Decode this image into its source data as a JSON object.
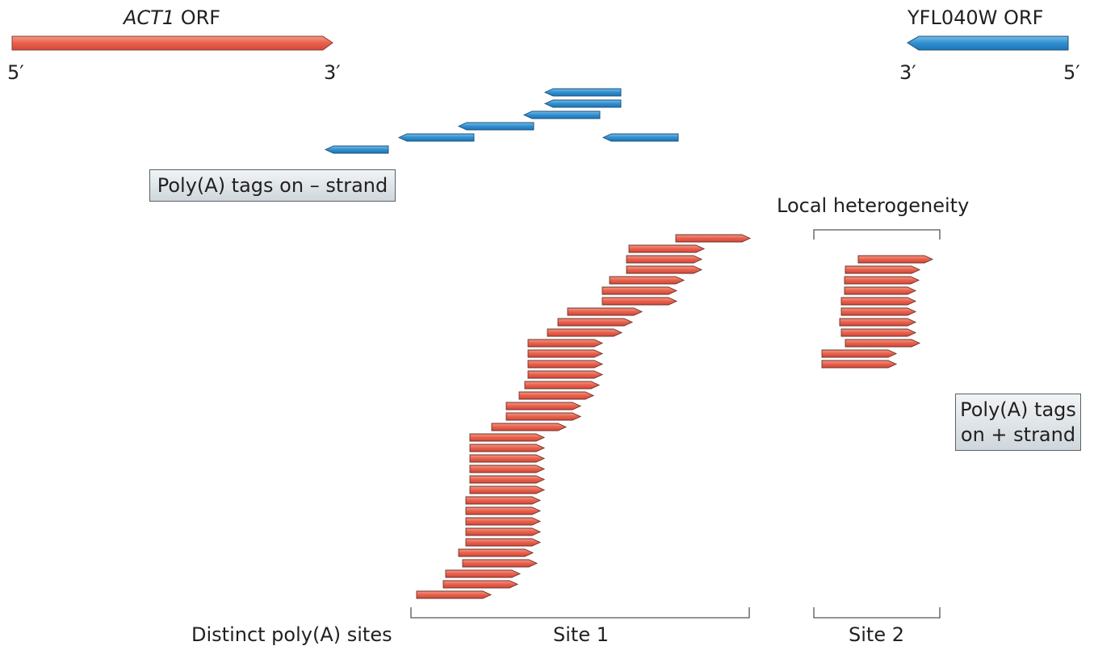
{
  "genes": {
    "act1": {
      "name": "ACT1",
      "suffix": " ORF",
      "five_prime": "5′",
      "three_prime": "3′",
      "color": "#e8604c"
    },
    "yfl040w": {
      "name": "YFL040W ORF",
      "three_prime": "3′",
      "five_prime": "5′",
      "color": "#2f8fd0"
    }
  },
  "labels": {
    "minus_strand_box": "Poly(A) tags on – strand",
    "plus_strand_box": [
      "Poly(A) tags",
      "on + strand"
    ],
    "local_heterogeneity": "Local heterogeneity",
    "distinct_sites": "Distinct poly(A) sites",
    "site1": "Site 1",
    "site2": "Site 2"
  },
  "colors": {
    "plus_tag": "#e8604c",
    "minus_tag": "#2f8fd0",
    "outline": "#6b3128",
    "bracket": "#555555",
    "box_border": "#5a6166"
  }
}
